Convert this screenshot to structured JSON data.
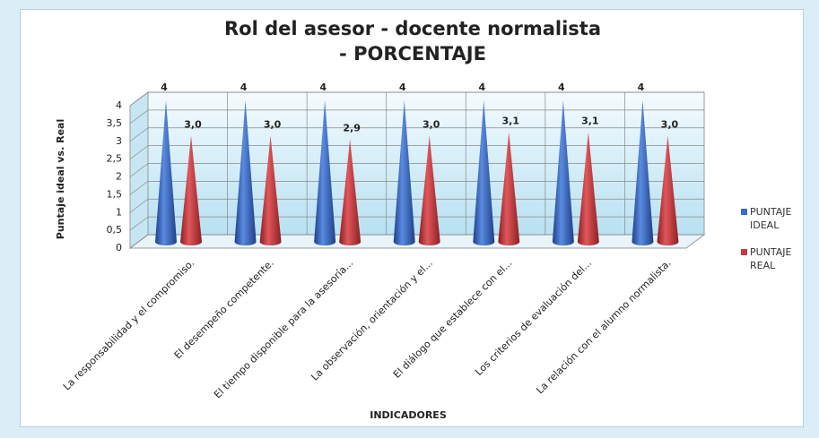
{
  "chart_data": {
    "type": "cone3d",
    "title": "Rol del asesor - docente normalista - PORCENTAJE",
    "ylabel": "Puntaje ideal vs. Real",
    "xlabel": "INDICADORES",
    "categories": [
      "La responsabilidad y el compromiso.",
      "El desempeño competente.",
      "El tiempo disponible para la asesoría...",
      "La observación, orientación y el...",
      "El diálogo que establece con el...",
      "Los criterios de evaluación del...",
      "La relación con el alumno normalista."
    ],
    "series": [
      {
        "name": "PUNTAJE IDEAL",
        "color": "#3b6cc6",
        "values": [
          4,
          4,
          4,
          4,
          4,
          4,
          4
        ]
      },
      {
        "name": "PUNTAJE REAL",
        "color": "#c63a3e",
        "values": [
          3.0,
          3.0,
          2.9,
          3.0,
          3.1,
          3.1,
          3.0
        ],
        "value_labels": [
          "3,0",
          "3,0",
          "2,9",
          "3,0",
          "3,1",
          "3,1",
          "3,0"
        ]
      }
    ],
    "ylim": [
      0,
      4
    ],
    "yticks": [
      0,
      {
        "value": 0.5,
        "label": "0,5"
      },
      1,
      {
        "value": 1.5,
        "label": "1,5"
      },
      2,
      {
        "value": 2.5,
        "label": "2,5"
      },
      3,
      {
        "value": 3.5,
        "label": "3,5"
      },
      4
    ],
    "legend": "right",
    "grid": true
  }
}
